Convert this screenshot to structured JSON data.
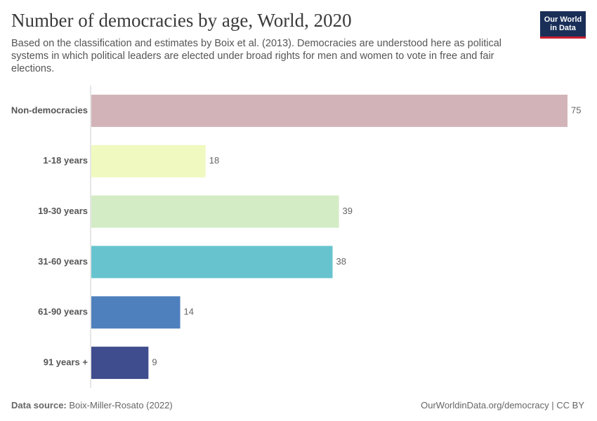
{
  "chart_data": {
    "type": "bar",
    "orientation": "horizontal",
    "title": "Number of democracies by age, World, 2020",
    "subtitle": "Based on the classification and estimates by Boix et al. (2013). Democracies are understood here as political systems in which political leaders are elected under broad rights for men and women to vote in free and fair elections.",
    "categories": [
      "Non-democracies",
      "1-18 years",
      "19-30 years",
      "31-60 years",
      "61-90 years",
      "91 years +"
    ],
    "values": [
      75,
      18,
      39,
      38,
      14,
      9
    ],
    "colors": [
      "#d2b4b8",
      "#f0f9bf",
      "#d3ecc5",
      "#67c4cf",
      "#4e80bd",
      "#3f4c8d"
    ],
    "source_label": "Data source:",
    "source": "Boix-Miller-Rosato (2022)",
    "footer": "OurWorldinData.org/democracy | CC BY"
  },
  "logo": [
    "Our World",
    "in Data"
  ]
}
